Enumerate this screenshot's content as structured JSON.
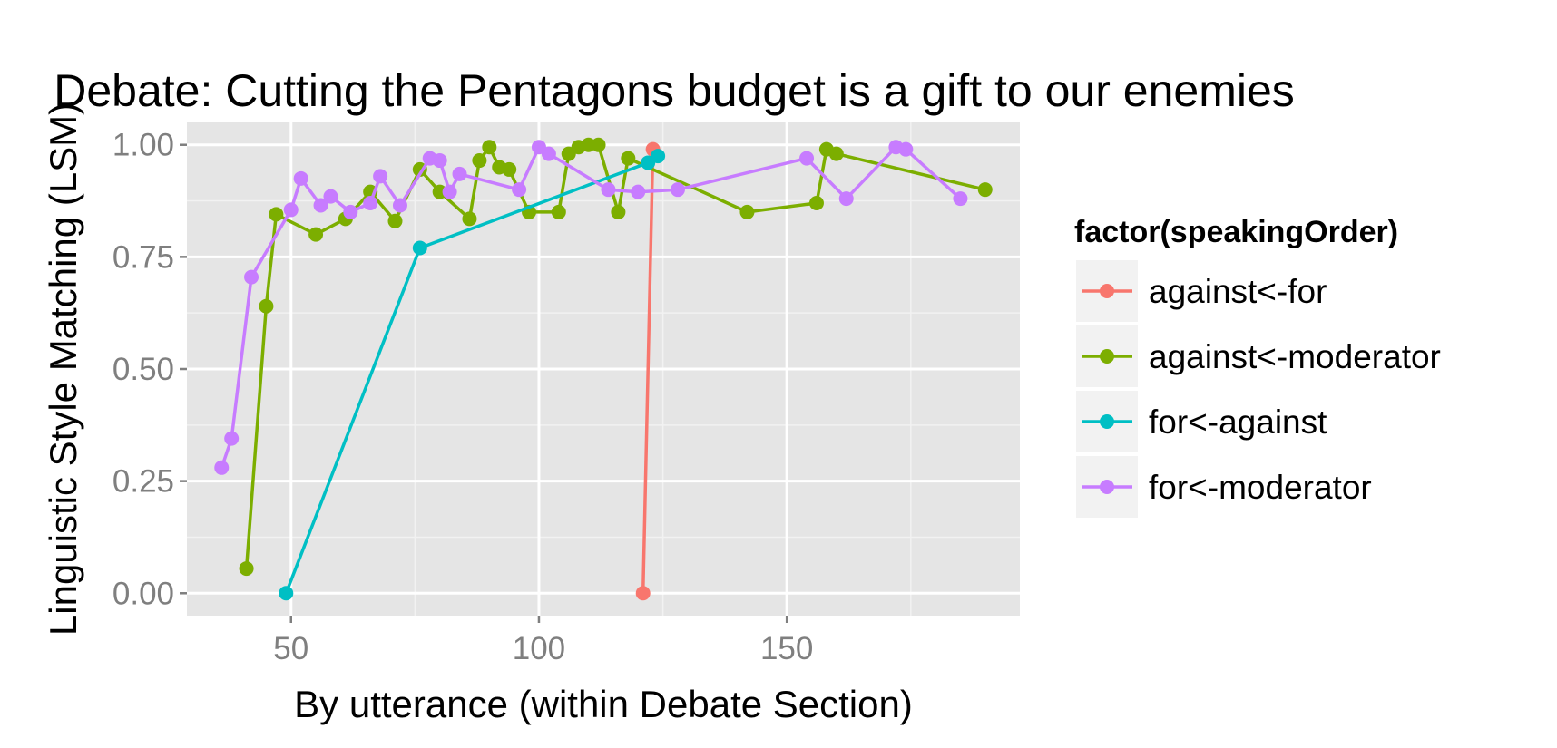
{
  "chart_data": {
    "type": "line",
    "title": "Debate: Cutting the Pentagons budget is a gift to our enemies",
    "xlabel": "By utterance (within Debate Section)",
    "ylabel": "Linguistic Style Matching (LSM)",
    "xlim": [
      29,
      197
    ],
    "ylim": [
      -0.05,
      1.05
    ],
    "x_ticks": [
      "50",
      "100",
      "150"
    ],
    "x_tick_values": [
      50,
      100,
      150
    ],
    "y_ticks": [
      "0.00",
      "0.25",
      "0.50",
      "0.75",
      "1.00"
    ],
    "y_tick_values": [
      0,
      0.25,
      0.5,
      0.75,
      1.0
    ],
    "grid": true,
    "legend": {
      "title": "factor(speakingOrder)",
      "position": "right"
    },
    "series": [
      {
        "name": "against<-for",
        "color": "#F8766D",
        "x": [
          121,
          123
        ],
        "y": [
          0.0,
          0.99
        ]
      },
      {
        "name": "against<-moderator",
        "color": "#7CAE00",
        "x": [
          41,
          45,
          47,
          55,
          61,
          66,
          71,
          76,
          80,
          86,
          88,
          90,
          92,
          94,
          98,
          104,
          106,
          108,
          110,
          112,
          116,
          118,
          142,
          156,
          158,
          160,
          190
        ],
        "y": [
          0.055,
          0.64,
          0.845,
          0.8,
          0.835,
          0.895,
          0.83,
          0.945,
          0.895,
          0.835,
          0.965,
          0.995,
          0.95,
          0.945,
          0.85,
          0.85,
          0.98,
          0.995,
          1.0,
          1.0,
          0.85,
          0.97,
          0.85,
          0.87,
          0.99,
          0.98,
          0.9
        ]
      },
      {
        "name": "for<-against",
        "color": "#00BFC4",
        "x": [
          49,
          76,
          122,
          124
        ],
        "y": [
          0.0,
          0.77,
          0.96,
          0.975
        ]
      },
      {
        "name": "for<-moderator",
        "color": "#C77CFF",
        "x": [
          36,
          38,
          42,
          50,
          52,
          56,
          58,
          62,
          66,
          68,
          72,
          78,
          80,
          82,
          84,
          96,
          100,
          102,
          114,
          120,
          128,
          154,
          162,
          172,
          174,
          185
        ],
        "y": [
          0.28,
          0.345,
          0.705,
          0.855,
          0.925,
          0.865,
          0.885,
          0.85,
          0.87,
          0.93,
          0.865,
          0.97,
          0.965,
          0.895,
          0.935,
          0.9,
          0.995,
          0.98,
          0.9,
          0.895,
          0.9,
          0.97,
          0.88,
          0.995,
          0.99,
          0.88
        ]
      }
    ]
  }
}
